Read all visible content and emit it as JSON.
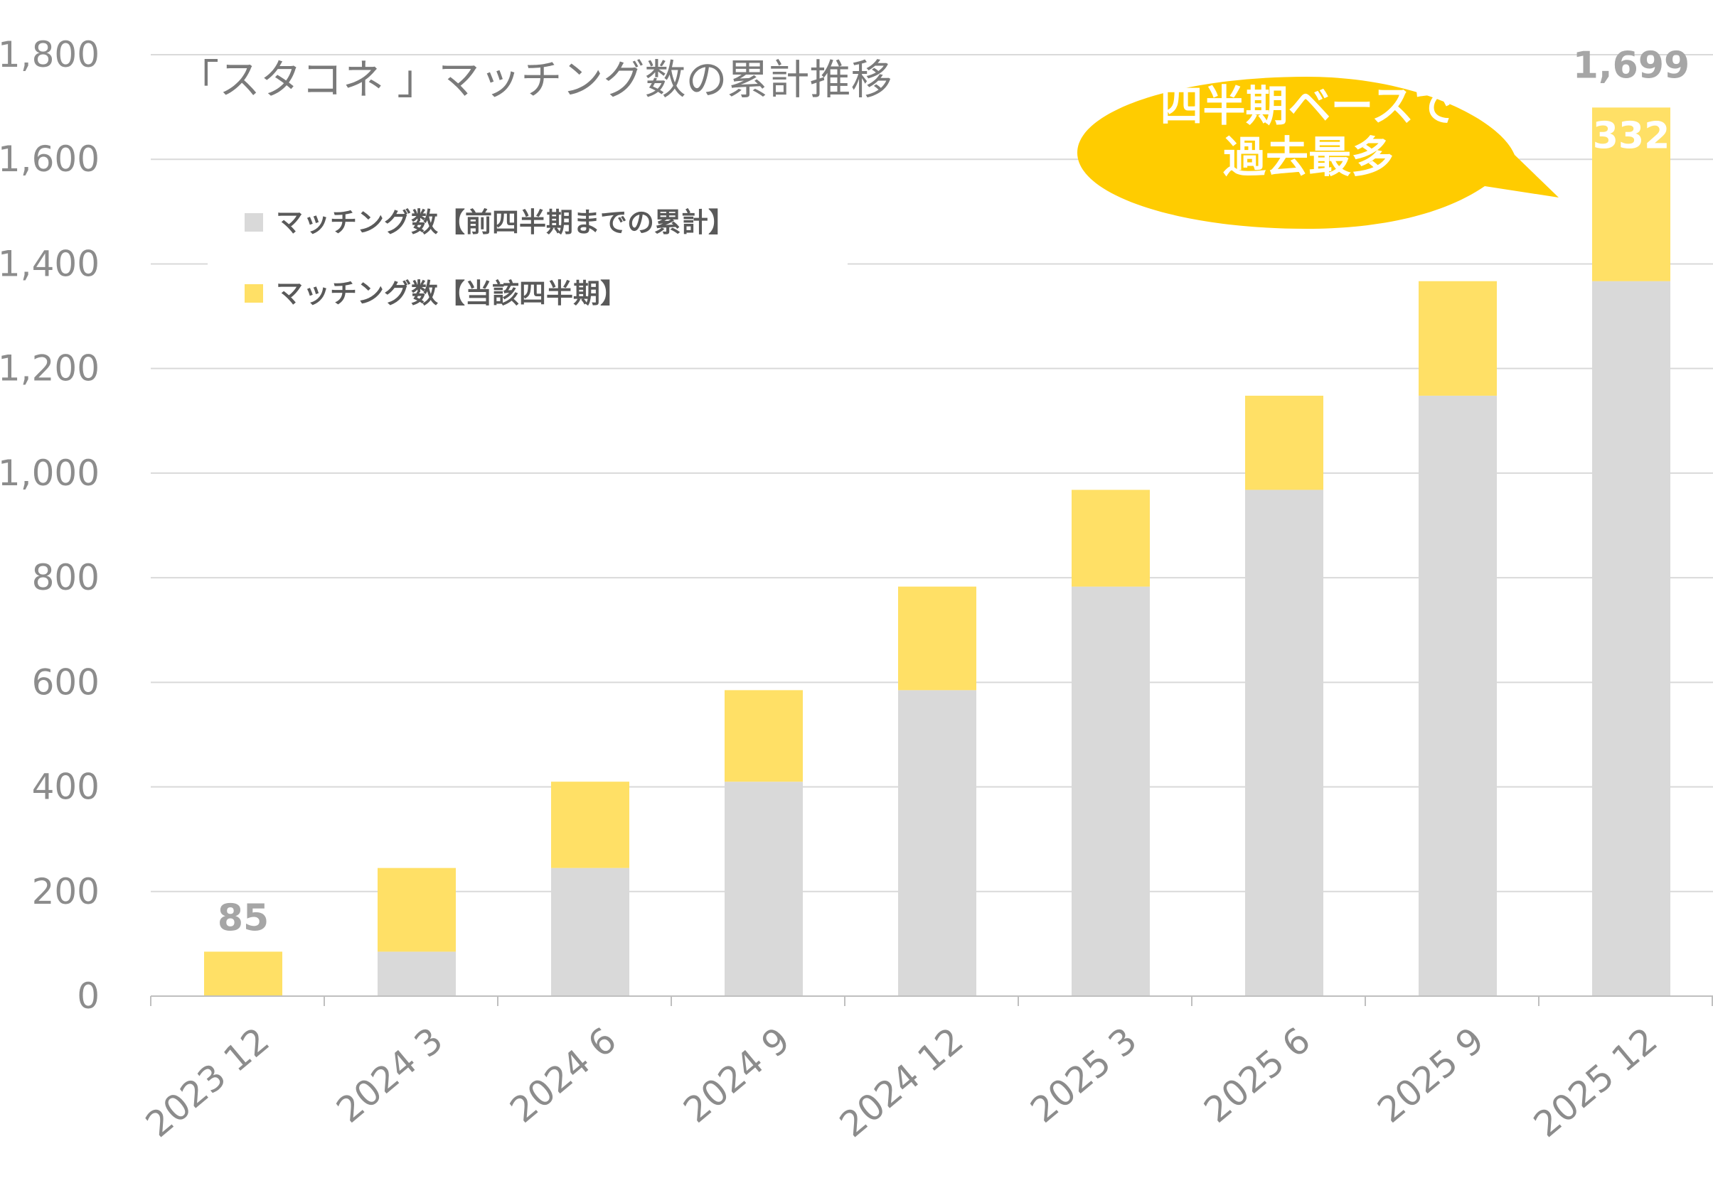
{
  "chart_data": {
    "type": "bar",
    "stacked": true,
    "title": "「スタコネ 」マッチング数の累計推移",
    "categories": [
      "2023 12",
      "2024 3",
      "2024 6",
      "2024 9",
      "2024 12",
      "2025 3",
      "2025 6",
      "2025 9",
      "2025 12"
    ],
    "series": [
      {
        "name": "マッチング数【前四半期までの累計】",
        "color": "#d9d9d9",
        "values": [
          0,
          85,
          245,
          410,
          585,
          783,
          968,
          1148,
          1367
        ]
      },
      {
        "name": "マッチング数【当該四半期】",
        "color": "#ffe066",
        "values": [
          85,
          160,
          165,
          175,
          198,
          185,
          180,
          219,
          332
        ]
      }
    ],
    "ylim": [
      0,
      1800
    ],
    "yticks": [
      "0",
      "200",
      "400",
      "600",
      "800",
      "1,000",
      "1,200",
      "1,400",
      "1,600",
      "1,800"
    ],
    "grid": true,
    "legend_position": "top-left",
    "annotations": {
      "first_total": "85",
      "last_total": "1,699",
      "last_increment": "332",
      "callout_line1": "四半期ベースで",
      "callout_line2": "過去最多",
      "callout_color": "#ffcc00"
    }
  }
}
